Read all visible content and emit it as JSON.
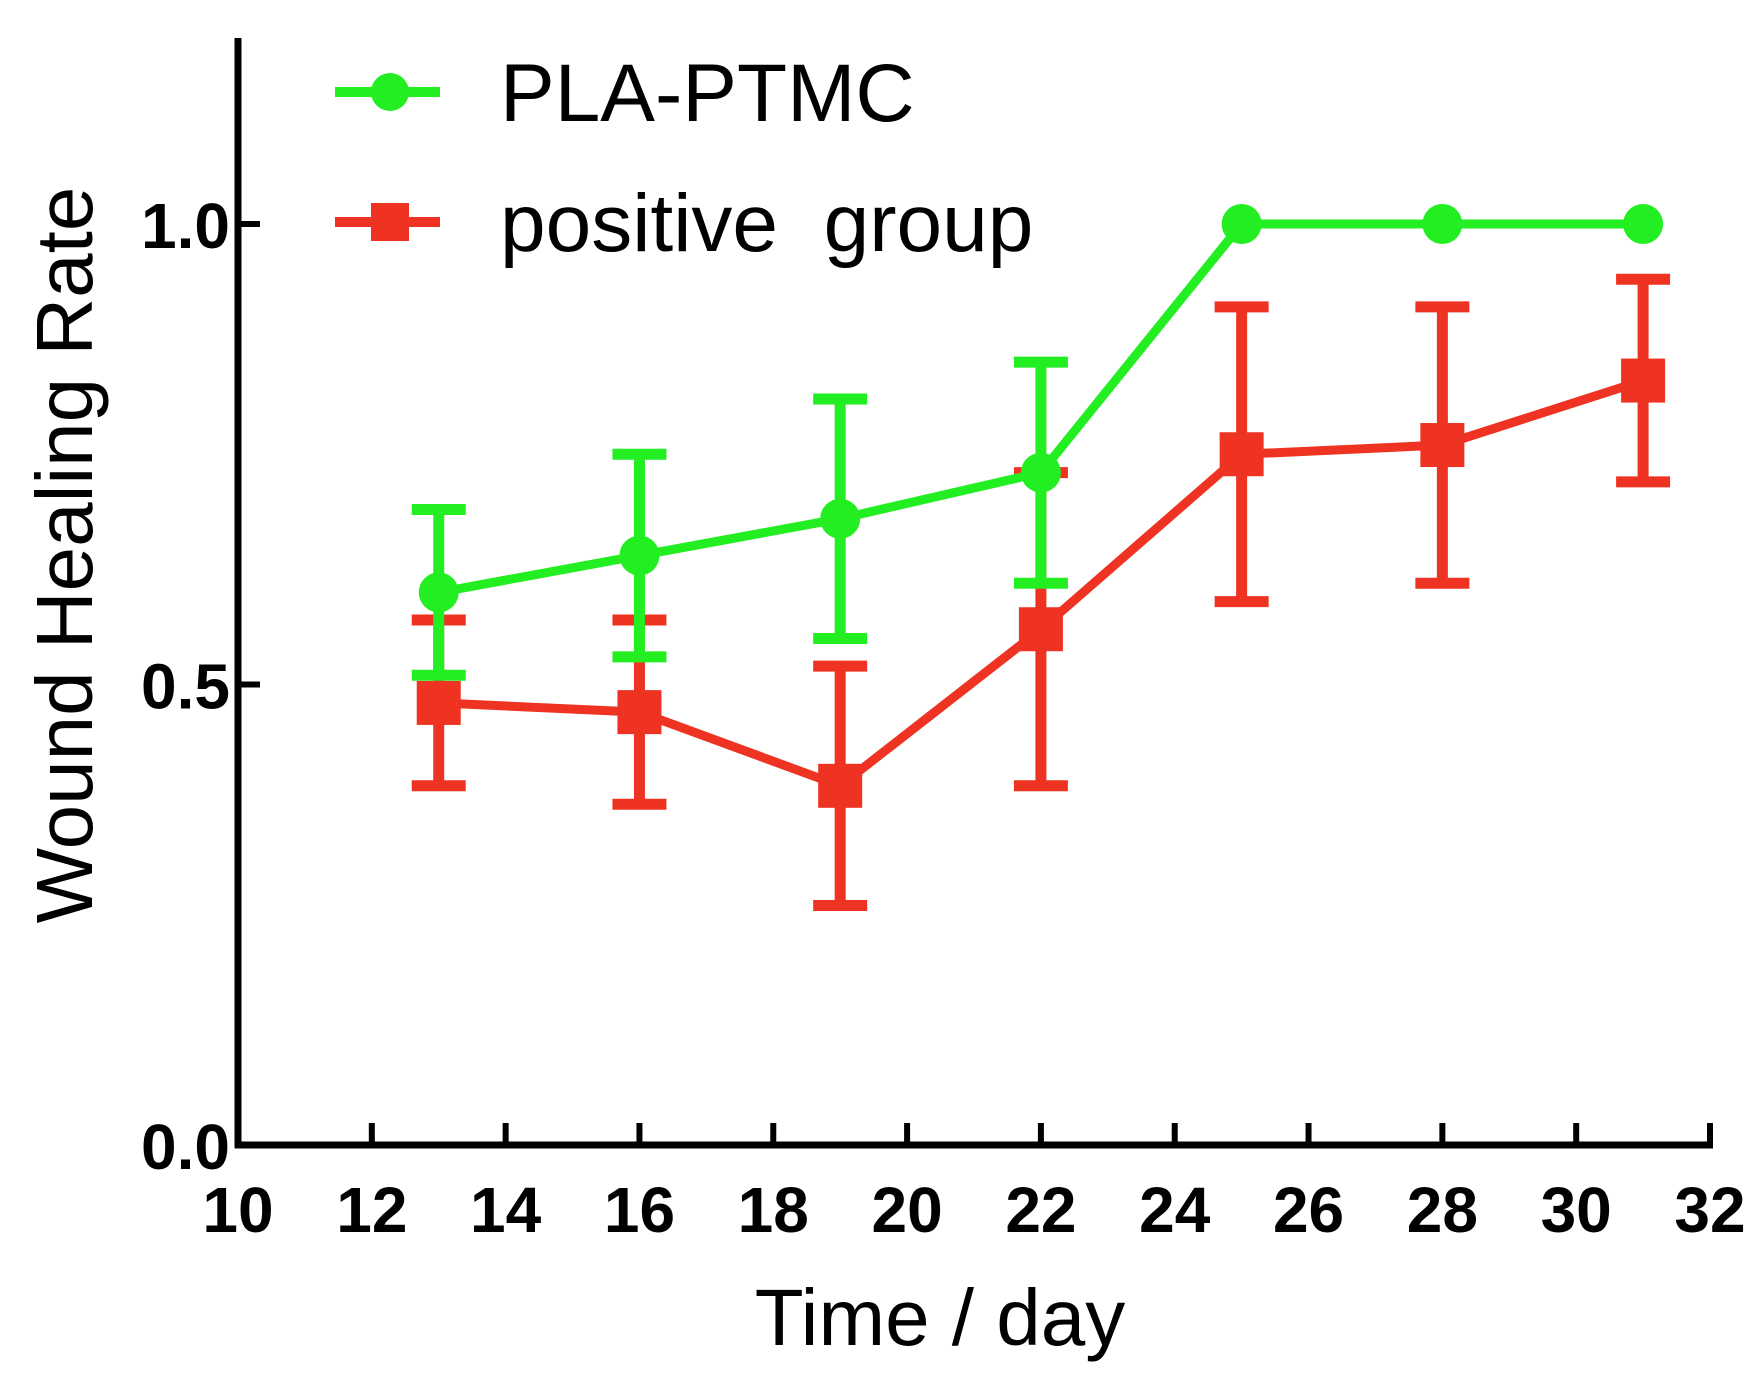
{
  "chart_data": {
    "type": "line",
    "title": "",
    "xlabel": "Time / day",
    "ylabel": "Wound Healing Rate",
    "xlim": [
      10,
      32
    ],
    "ylim": [
      0,
      1.2
    ],
    "xticks": [
      10,
      12,
      14,
      16,
      18,
      20,
      22,
      24,
      26,
      28,
      30,
      32
    ],
    "xtick_labels": [
      "10",
      "12",
      "14",
      "16",
      "18",
      "20",
      "22",
      "24",
      "26",
      "28",
      "30",
      "32"
    ],
    "yticks": [
      0,
      0.5,
      1.0
    ],
    "ytick_labels": [
      "0.0",
      "0.5",
      "1.0"
    ],
    "grid": false,
    "legend_position": "top-left",
    "series": [
      {
        "name": "PLA-PTMC",
        "color": "#22ee22",
        "marker": "circle",
        "x": [
          13,
          16,
          19,
          22,
          25,
          28,
          31
        ],
        "y": [
          0.6,
          0.64,
          0.68,
          0.73,
          1.0,
          1.0,
          1.0
        ],
        "error": [
          0.09,
          0.11,
          0.13,
          0.12,
          0.0,
          0.0,
          0.0
        ]
      },
      {
        "name": "positive  group",
        "color": "#ee3322",
        "marker": "square",
        "x": [
          13,
          16,
          19,
          22,
          25,
          28,
          31
        ],
        "y": [
          0.48,
          0.47,
          0.39,
          0.56,
          0.75,
          0.76,
          0.83
        ],
        "error": [
          0.09,
          0.1,
          0.13,
          0.17,
          0.16,
          0.15,
          0.11
        ]
      }
    ]
  }
}
